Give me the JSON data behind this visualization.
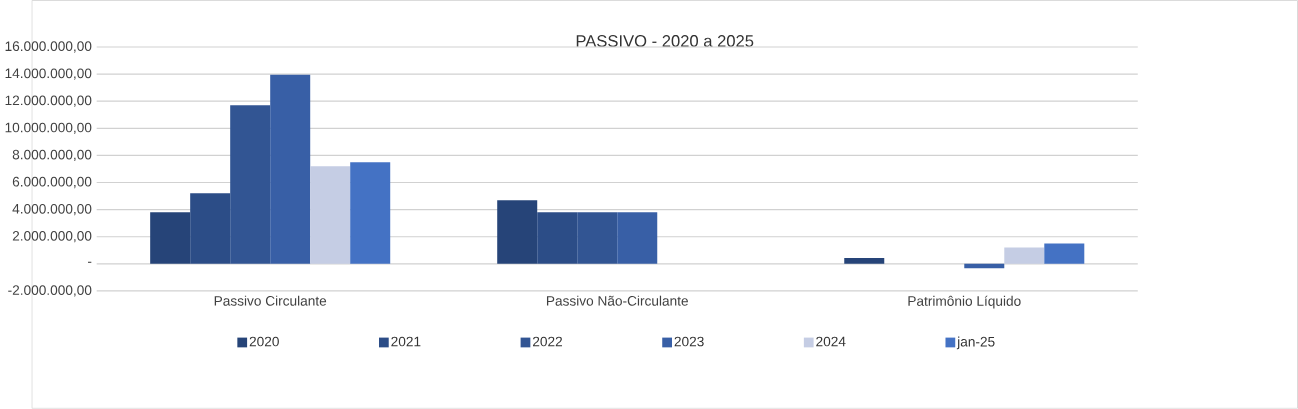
{
  "chart_data": {
    "type": "bar",
    "title": "PASSIVO - 2020 a 2025",
    "categories": [
      "Passivo Circulante",
      "Passivo Não-Circulante",
      "Patrimônio Líquido"
    ],
    "series": [
      {
        "name": "2020",
        "color": "#264478",
        "values": [
          3800000,
          4700000,
          430000
        ]
      },
      {
        "name": "2021",
        "color": "#2c4d87",
        "values": [
          5200000,
          3800000,
          null
        ]
      },
      {
        "name": "2022",
        "color": "#325593",
        "values": [
          11700000,
          3800000,
          null
        ]
      },
      {
        "name": "2023",
        "color": "#385fa6",
        "values": [
          13950000,
          3800000,
          -320000
        ]
      },
      {
        "name": "2024",
        "color": "#c5cde4",
        "values": [
          7200000,
          null,
          1200000
        ]
      },
      {
        "name": "jan-25",
        "color": "#4472c4",
        "values": [
          7500000,
          null,
          1500000
        ]
      }
    ],
    "ylim": [
      -2000000,
      16000000
    ],
    "yticks": [
      {
        "value": -2000000,
        "label": "-2.000.000,00"
      },
      {
        "value": 0,
        "label": "-"
      },
      {
        "value": 2000000,
        "label": "2.000.000,00"
      },
      {
        "value": 4000000,
        "label": "4.000.000,00"
      },
      {
        "value": 6000000,
        "label": "6.000.000,00"
      },
      {
        "value": 8000000,
        "label": "8.000.000,00"
      },
      {
        "value": 10000000,
        "label": "10.000.000,00"
      },
      {
        "value": 12000000,
        "label": "12.000.000,00"
      },
      {
        "value": 14000000,
        "label": "14.000.000,00"
      },
      {
        "value": 16000000,
        "label": "16.000.000,00"
      }
    ],
    "grid": "y",
    "legend": "bottom"
  }
}
